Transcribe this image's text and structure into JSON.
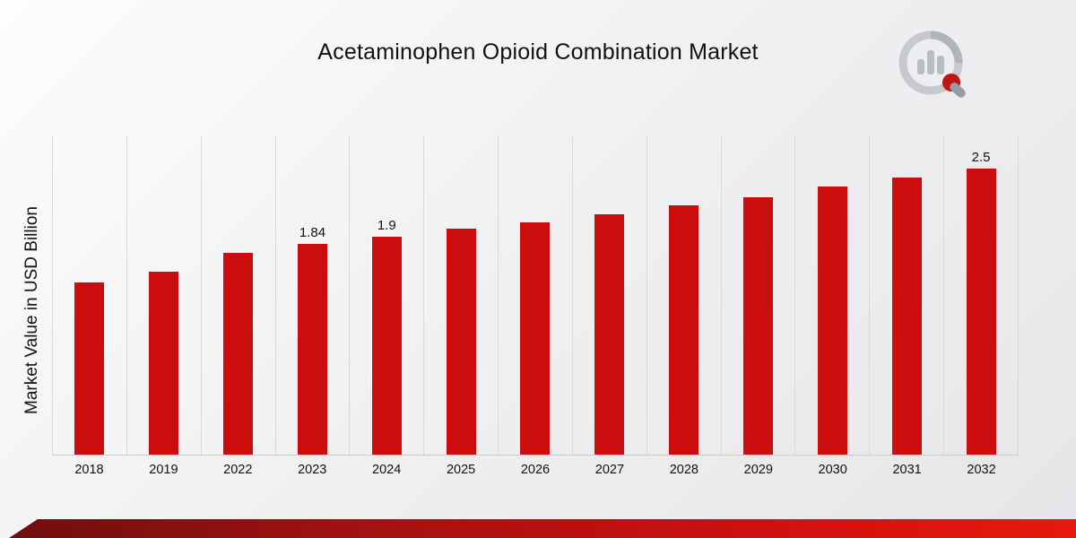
{
  "page": {
    "title": "Acetaminophen Opioid Combination Market"
  },
  "chart_data": {
    "type": "bar",
    "title": "Acetaminophen Opioid Combination Market",
    "xlabel": "",
    "ylabel": "Market Value in USD Billion",
    "categories": [
      "2018",
      "2019",
      "2022",
      "2023",
      "2024",
      "2025",
      "2026",
      "2027",
      "2028",
      "2029",
      "2030",
      "2031",
      "2032"
    ],
    "values": [
      1.5,
      1.6,
      1.76,
      1.84,
      1.9,
      1.97,
      2.03,
      2.1,
      2.18,
      2.25,
      2.34,
      2.42,
      2.5
    ],
    "point_labels": [
      "",
      "",
      "",
      "1.84",
      "1.9",
      "",
      "",
      "",
      "",
      "",
      "",
      "",
      "2.5"
    ],
    "ylim": [
      0,
      2.78
    ],
    "grid": "vertical-gridlines",
    "legend": "none",
    "bar_color": "#cc0d0d"
  },
  "colors": {
    "bar": "#cc0d0d",
    "ribbon_dark": "#6e0e0e",
    "ribbon_bright": "#e8190c",
    "gridline": "#dadada"
  },
  "branding": {
    "logo_name": "market-research-magnifier-chart-logo"
  }
}
